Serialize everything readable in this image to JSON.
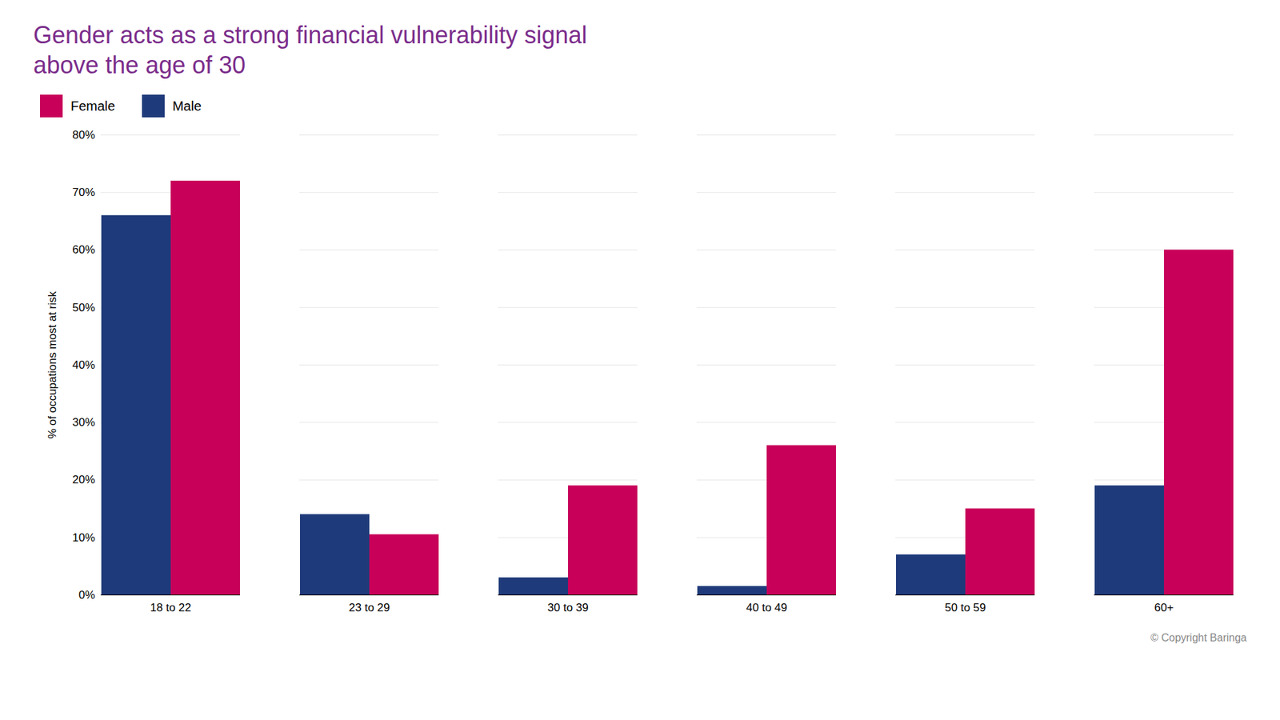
{
  "chart_data": {
    "type": "bar",
    "title": "Gender acts as a strong financial vulnerability signal",
    "subtitle": "above the age of 30",
    "title_color": "#7B2D8B",
    "ylabel": "% of occupations most at risk",
    "caption": "© Copyright Baringa",
    "categories": [
      "18 to 22",
      "23 to 29",
      "30 to 39",
      "40 to 49",
      "50 to 59",
      "60+"
    ],
    "series": [
      {
        "name": "Male",
        "color": "#1F3A7A",
        "values": [
          0.66,
          0.14,
          0.03,
          0.015,
          0.07,
          0.19
        ]
      },
      {
        "name": "Female",
        "color": "#C8005A",
        "values": [
          0.72,
          0.105,
          0.19,
          0.26,
          0.15,
          0.6
        ]
      }
    ],
    "ylim": [
      0,
      0.8
    ],
    "yticks": [
      {
        "value": 0.0,
        "label": "0%"
      },
      {
        "value": 0.1,
        "label": "10%"
      },
      {
        "value": 0.2,
        "label": "20%"
      },
      {
        "value": 0.3,
        "label": "30%"
      },
      {
        "value": 0.4,
        "label": "40%"
      },
      {
        "value": 0.5,
        "label": "50%"
      },
      {
        "value": 0.6,
        "label": "60%"
      },
      {
        "value": 0.7,
        "label": "70%"
      },
      {
        "value": 0.8,
        "label": "80%"
      }
    ],
    "grid": true,
    "legend": "top-left"
  }
}
